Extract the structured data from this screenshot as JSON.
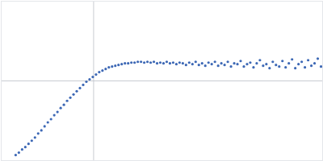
{
  "chart_data": {
    "type": "scatter",
    "x": [
      18,
      22,
      26,
      30,
      34,
      38,
      42,
      46,
      50,
      54,
      58,
      62,
      66,
      70,
      74,
      78,
      82,
      86,
      90,
      94,
      98,
      102,
      106,
      110,
      114,
      118,
      122,
      126,
      130,
      134,
      138,
      142,
      146,
      150,
      154,
      158,
      162,
      166,
      170,
      174,
      178,
      182,
      186,
      190,
      194,
      198,
      202,
      206,
      210,
      214,
      218,
      222,
      226,
      230,
      234,
      238,
      242,
      246,
      250,
      254,
      258,
      262,
      266,
      270,
      274,
      278,
      282,
      286,
      290,
      294,
      298,
      302,
      306,
      310,
      314,
      318,
      322,
      326,
      330,
      334,
      338,
      342,
      346,
      350,
      354,
      358,
      362,
      366,
      370,
      374,
      378,
      382,
      386,
      390,
      394,
      398
    ],
    "values": [
      7,
      10,
      14,
      17,
      21,
      25,
      29,
      34,
      38,
      43,
      48,
      52,
      57,
      61,
      66,
      70,
      75,
      79,
      83,
      87,
      91,
      95,
      99,
      102,
      105,
      108,
      111,
      113,
      115,
      117,
      118,
      119,
      120,
      121,
      122,
      122,
      123,
      123,
      124,
      124,
      123,
      124,
      123,
      124,
      122,
      123,
      122,
      124,
      122,
      123,
      121,
      123,
      122,
      120,
      123,
      121,
      124,
      120,
      122,
      119,
      123,
      121,
      124,
      119,
      122,
      120,
      124,
      118,
      122,
      121,
      125,
      118,
      121,
      123,
      117,
      122,
      126,
      119,
      121,
      116,
      124,
      120,
      118,
      125,
      117,
      122,
      127,
      116,
      121,
      124,
      117,
      126,
      119,
      122,
      128,
      118
    ],
    "color": "#3d68b5",
    "marker": "circle",
    "xlim": [
      0,
      400
    ],
    "ylim": [
      0,
      200
    ],
    "xticks": [
      115
    ],
    "yticks": [
      100
    ],
    "grid": true,
    "tick_labels": false
  }
}
